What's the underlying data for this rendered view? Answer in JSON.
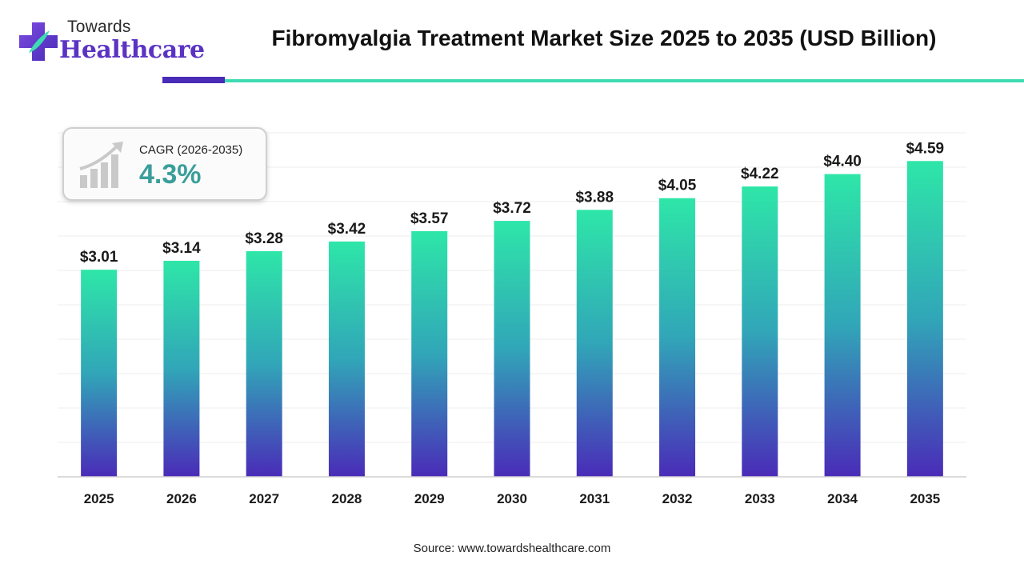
{
  "brand": {
    "top": "Towards",
    "main": "Healthcare",
    "colors": {
      "purple": "#5a33c4",
      "teal": "#3ddbb2"
    }
  },
  "cagr": {
    "label": "CAGR (2026-2035)",
    "value": "4.3%",
    "icon": "bar-growth-icon"
  },
  "source": "Source: www.towardshealthcare.com",
  "chart_data": {
    "type": "bar",
    "title": "Fibromyalgia Treatment Market Size 2025 to 2035 (USD Billion)",
    "categories": [
      "2025",
      "2026",
      "2027",
      "2028",
      "2029",
      "2030",
      "2031",
      "2032",
      "2033",
      "2034",
      "2035"
    ],
    "values": [
      3.01,
      3.14,
      3.28,
      3.42,
      3.57,
      3.72,
      3.88,
      4.05,
      4.22,
      4.4,
      4.59
    ],
    "value_labels": [
      "$3.01",
      "$3.14",
      "$3.28",
      "$3.42",
      "$3.57",
      "$3.72",
      "$3.88",
      "$4.05",
      "$4.22",
      "$4.40",
      "$4.59"
    ],
    "xlabel": "",
    "ylabel": "",
    "ylim": [
      0,
      5
    ],
    "grid": true,
    "legend": "none",
    "bar_gradient": {
      "top": "#2ee6a8",
      "middle": "#31a6b8",
      "bottom": "#4a2bb8"
    }
  }
}
